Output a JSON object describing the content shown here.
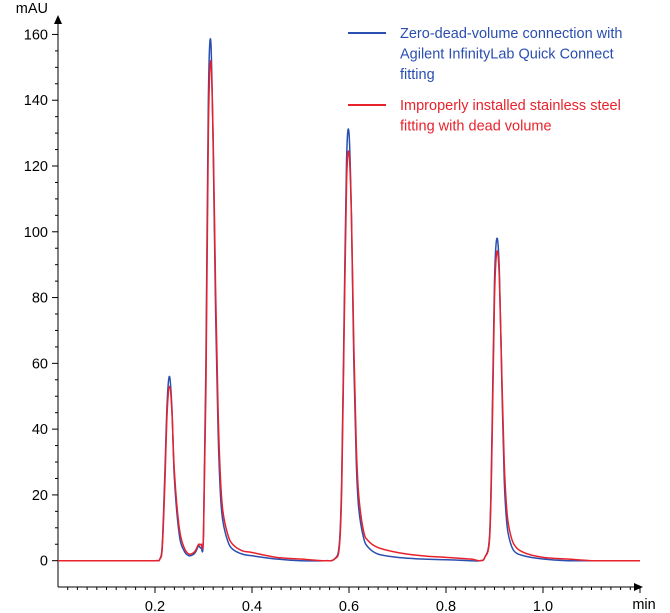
{
  "chart_data": {
    "type": "line",
    "xlabel": "min",
    "ylabel": "mAU",
    "xlim": [
      0.0,
      1.2
    ],
    "ylim": [
      -8,
      165
    ],
    "x_ticks": [
      0.2,
      0.4,
      0.6,
      0.8,
      1.0
    ],
    "x_tick_labels": [
      "0.2",
      "0.4",
      "0.6",
      "0.8",
      "1.0"
    ],
    "y_ticks": [
      0,
      20,
      40,
      60,
      80,
      100,
      120,
      140,
      160
    ],
    "y_tick_labels": [
      "0",
      "20",
      "40",
      "60",
      "80",
      "100",
      "120",
      "140",
      "160"
    ],
    "grid": false,
    "legend_position": "top-right",
    "legend_lines": [
      [
        "Zero-dead-volume connection with",
        "Agilent InfinityLab Quick Connect",
        "fitting"
      ],
      [
        "Improperly installed stainless steel",
        "fitting with dead volume"
      ]
    ],
    "series": [
      {
        "name": "Zero-dead-volume connection with Agilent InfinityLab Quick Connect fitting",
        "color": "#2b4fb0",
        "x": [
          0.0,
          0.05,
          0.1,
          0.15,
          0.2,
          0.21,
          0.215,
          0.22,
          0.225,
          0.23,
          0.235,
          0.24,
          0.25,
          0.26,
          0.27,
          0.28,
          0.285,
          0.29,
          0.295,
          0.3,
          0.305,
          0.31,
          0.315,
          0.32,
          0.325,
          0.33,
          0.335,
          0.34,
          0.35,
          0.36,
          0.38,
          0.4,
          0.45,
          0.5,
          0.55,
          0.57,
          0.58,
          0.585,
          0.59,
          0.595,
          0.6,
          0.605,
          0.61,
          0.615,
          0.62,
          0.63,
          0.64,
          0.66,
          0.7,
          0.75,
          0.8,
          0.85,
          0.87,
          0.88,
          0.89,
          0.895,
          0.9,
          0.905,
          0.91,
          0.915,
          0.92,
          0.925,
          0.93,
          0.94,
          0.96,
          1.0,
          1.05,
          1.1,
          1.15,
          1.2
        ],
        "values": [
          0,
          0,
          0,
          0,
          0,
          0.5,
          5,
          25,
          48,
          56,
          46,
          25,
          8,
          3,
          1.5,
          2,
          3,
          4.5,
          4,
          8,
          60,
          140,
          158,
          125,
          75,
          40,
          20,
          12,
          6,
          3.5,
          2,
          1.5,
          0.5,
          0,
          0,
          0.5,
          5,
          25,
          75,
          122,
          130,
          105,
          60,
          30,
          16,
          7,
          4,
          2,
          1,
          0.5,
          0.3,
          0,
          0,
          1,
          8,
          40,
          85,
          98,
          88,
          55,
          25,
          12,
          7,
          3,
          1.5,
          0.5,
          0,
          0,
          0,
          0
        ]
      },
      {
        "name": "Improperly installed stainless steel fitting with dead volume",
        "color": "#e8222b",
        "x": [
          0.0,
          0.05,
          0.1,
          0.15,
          0.2,
          0.21,
          0.215,
          0.22,
          0.225,
          0.23,
          0.235,
          0.24,
          0.25,
          0.26,
          0.27,
          0.28,
          0.285,
          0.29,
          0.295,
          0.3,
          0.305,
          0.31,
          0.315,
          0.32,
          0.325,
          0.33,
          0.335,
          0.34,
          0.35,
          0.36,
          0.38,
          0.4,
          0.45,
          0.5,
          0.55,
          0.57,
          0.58,
          0.585,
          0.59,
          0.595,
          0.6,
          0.605,
          0.61,
          0.615,
          0.62,
          0.63,
          0.64,
          0.66,
          0.7,
          0.75,
          0.8,
          0.85,
          0.87,
          0.88,
          0.89,
          0.895,
          0.9,
          0.905,
          0.91,
          0.915,
          0.92,
          0.925,
          0.93,
          0.94,
          0.96,
          1.0,
          1.05,
          1.1,
          1.15,
          1.2
        ],
        "values": [
          0,
          0,
          0,
          0,
          0,
          0.5,
          4,
          22,
          45,
          53,
          45,
          27,
          10,
          4,
          2,
          2.5,
          3.5,
          5,
          5,
          8,
          52,
          130,
          152,
          128,
          82,
          46,
          25,
          15,
          8,
          5,
          3,
          2.5,
          1,
          0.5,
          0,
          0.5,
          4,
          22,
          70,
          115,
          124,
          105,
          65,
          35,
          20,
          9,
          6,
          4,
          2.5,
          1.5,
          1,
          0.5,
          0,
          1,
          7,
          36,
          80,
          94,
          86,
          57,
          30,
          16,
          10,
          5,
          2.5,
          1,
          0.5,
          0,
          0,
          0
        ]
      }
    ]
  }
}
